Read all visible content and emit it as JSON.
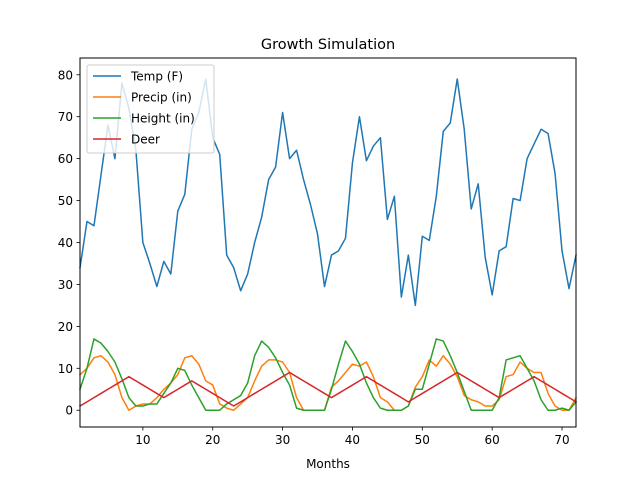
{
  "chart_data": {
    "type": "line",
    "title": "Growth Simulation",
    "xlabel": "Months",
    "ylabel": "",
    "xlim": [
      1,
      72
    ],
    "ylim": [
      -4,
      84
    ],
    "xticks": [
      10,
      20,
      30,
      40,
      50,
      60,
      70
    ],
    "yticks": [
      0,
      10,
      20,
      30,
      40,
      50,
      60,
      70,
      80
    ],
    "grid": false,
    "legend": "top-left",
    "x": [
      1,
      2,
      3,
      4,
      5,
      6,
      7,
      8,
      9,
      10,
      11,
      12,
      13,
      14,
      15,
      16,
      17,
      18,
      19,
      20,
      21,
      22,
      23,
      24,
      25,
      26,
      27,
      28,
      29,
      30,
      31,
      32,
      33,
      34,
      35,
      36,
      37,
      38,
      39,
      40,
      41,
      42,
      43,
      44,
      45,
      46,
      47,
      48,
      49,
      50,
      51,
      52,
      53,
      54,
      55,
      56,
      57,
      58,
      59,
      60,
      61,
      62,
      63,
      64,
      65,
      66,
      67,
      68,
      69,
      70,
      71,
      72
    ],
    "series": [
      {
        "name": "Temp (F)",
        "color": "#1f77b4",
        "values": [
          34,
          45,
          44,
          56,
          68,
          60,
          78,
          72,
          62,
          40,
          35,
          29.5,
          35.5,
          32.5,
          47.5,
          51.5,
          67,
          71,
          79,
          65,
          61,
          37,
          34,
          28.5,
          32.5,
          40,
          46,
          55,
          58,
          71,
          60,
          62,
          55,
          49,
          42,
          29.5,
          37,
          38,
          41,
          59,
          70,
          59.5,
          63,
          65,
          45.5,
          51,
          27,
          37,
          25,
          41.5,
          40.5,
          51,
          66.5,
          68.5,
          79,
          67,
          48,
          54,
          36.5,
          27.5,
          38,
          39,
          50.5,
          50,
          60,
          63.5,
          67,
          66,
          56.5,
          38,
          29,
          37
        ]
      },
      {
        "name": "Precip (in)",
        "color": "#ff7f0e",
        "values": [
          8.5,
          10,
          12.5,
          13,
          11.5,
          8.5,
          3,
          0,
          1,
          1.5,
          1.5,
          3,
          5,
          6.5,
          8.5,
          12.5,
          13,
          11,
          7,
          6,
          1.5,
          0.5,
          0,
          1.5,
          3,
          7,
          10.5,
          12,
          12,
          11.5,
          9,
          3,
          0,
          0,
          0,
          0,
          5.5,
          7,
          9,
          11,
          10.5,
          11.5,
          8,
          3,
          2,
          0,
          0,
          1,
          5.5,
          8,
          12,
          10.5,
          13,
          11,
          8,
          3.5,
          2.5,
          2,
          1,
          1,
          2.5,
          8,
          8.5,
          11.5,
          10,
          9,
          9,
          4,
          1,
          0,
          0,
          3
        ]
      },
      {
        "name": "Height (in)",
        "color": "#2ca02c",
        "values": [
          5,
          10,
          17,
          16,
          14,
          11.5,
          7.5,
          3,
          1,
          1,
          1.5,
          1.5,
          4,
          6.5,
          10,
          9.5,
          6,
          3,
          0,
          0,
          0,
          1.5,
          2.5,
          3.5,
          6.5,
          13,
          16.5,
          15,
          12.5,
          9,
          6,
          0.5,
          0,
          0,
          0,
          0,
          5,
          11,
          16.5,
          14,
          11,
          6.5,
          3,
          0.5,
          0,
          0,
          0,
          1,
          5,
          5,
          11,
          17,
          16.5,
          13,
          9,
          4.5,
          0,
          0,
          0,
          0,
          3,
          12,
          12.5,
          13,
          10,
          7,
          2.5,
          0,
          0,
          0.5,
          0,
          2
        ]
      },
      {
        "name": "Deer",
        "color": "#d62728",
        "values": [
          1,
          2,
          3,
          4,
          5,
          6,
          7,
          8,
          7,
          6,
          5,
          4,
          3,
          4,
          5,
          6,
          7,
          6,
          5,
          4,
          3,
          2,
          1,
          2,
          3,
          4,
          5,
          6,
          7,
          8,
          9,
          8,
          7,
          6,
          5,
          4,
          3,
          4,
          5,
          6,
          7,
          8,
          7,
          6,
          5,
          4,
          3,
          2,
          3,
          4,
          5,
          6,
          7,
          8,
          9,
          8,
          7,
          6,
          5,
          4,
          3,
          4,
          5,
          6,
          7,
          8,
          7,
          6,
          5,
          4,
          3,
          2
        ]
      }
    ]
  }
}
